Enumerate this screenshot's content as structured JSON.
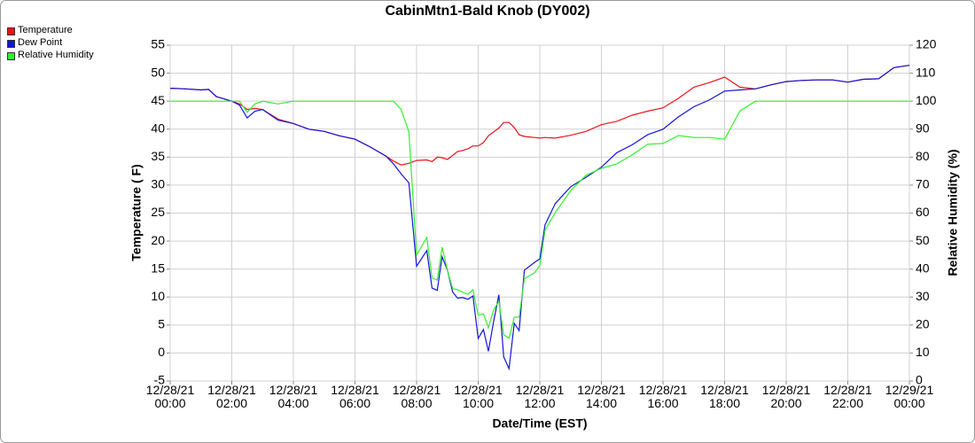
{
  "chart_data": {
    "type": "line",
    "title": "CabinMtn1-Bald Knob (DY002)",
    "x_label": "Date/Time (EST)",
    "y_label": "Temperature ( F)",
    "y2_label": "Relative Humidity (%)",
    "legend": "top-left",
    "grid": true,
    "xlim": [
      0,
      24
    ],
    "xticks": [
      {
        "value": 0,
        "label": "12/28/21\n00:00"
      },
      {
        "value": 2,
        "label": "12/28/21\n02:00"
      },
      {
        "value": 4,
        "label": "12/28/21\n04:00"
      },
      {
        "value": 6,
        "label": "12/28/21\n06:00"
      },
      {
        "value": 8,
        "label": "12/28/21\n08:00"
      },
      {
        "value": 10,
        "label": "12/28/21\n10:00"
      },
      {
        "value": 12,
        "label": "12/28/21\n12:00"
      },
      {
        "value": 14,
        "label": "12/28/21\n14:00"
      },
      {
        "value": 16,
        "label": "12/28/21\n16:00"
      },
      {
        "value": 18,
        "label": "12/28/21\n18:00"
      },
      {
        "value": 20,
        "label": "12/28/21\n20:00"
      },
      {
        "value": 22,
        "label": "12/28/21\n22:00"
      },
      {
        "value": 24,
        "label": "12/29/21\n00:00"
      }
    ],
    "ylim": [
      -5,
      55
    ],
    "yticks": [
      -5,
      0,
      5,
      10,
      15,
      20,
      25,
      30,
      35,
      40,
      45,
      50,
      55
    ],
    "y2lim": [
      0,
      120
    ],
    "y2ticks": [
      0,
      10,
      20,
      30,
      40,
      50,
      60,
      70,
      80,
      90,
      100,
      110,
      120
    ],
    "x": [
      0,
      0.5,
      1,
      1.25,
      1.5,
      2,
      2.25,
      2.5,
      2.75,
      3,
      3.5,
      4,
      4.5,
      5,
      5.5,
      6,
      6.5,
      7,
      7.25,
      7.5,
      7.75,
      8,
      8.33,
      8.5,
      8.67,
      8.83,
      9,
      9.17,
      9.33,
      9.5,
      9.67,
      9.83,
      10,
      10.17,
      10.33,
      10.5,
      10.67,
      10.83,
      11,
      11.17,
      11.33,
      11.5,
      11.83,
      12,
      12.17,
      12.5,
      13,
      13.5,
      14,
      14.5,
      15,
      15.5,
      16,
      16.5,
      17,
      17.5,
      18,
      18.5,
      19,
      19.5,
      20,
      20.5,
      21,
      21.5,
      22,
      22.5,
      23,
      23.5,
      24
    ],
    "series": [
      {
        "name": "Temperature",
        "color": "#e8141a",
        "values": [
          47.3,
          47.2,
          47.0,
          47.1,
          45.8,
          45.0,
          44.5,
          43.5,
          43.7,
          43.5,
          41.8,
          41.0,
          40.0,
          39.6,
          38.8,
          38.2,
          36.8,
          35.2,
          34.3,
          33.6,
          33.9,
          34.4,
          34.5,
          34.2,
          35.0,
          34.9,
          34.6,
          35.3,
          36.0,
          36.2,
          36.5,
          37.0,
          37.0,
          37.6,
          38.8,
          39.5,
          40.2,
          41.2,
          41.2,
          40.3,
          39.0,
          38.7,
          38.5,
          38.4,
          38.5,
          38.4,
          38.9,
          39.6,
          40.8,
          41.4,
          42.5,
          43.2,
          43.8,
          45.5,
          47.5,
          48.3,
          49.3,
          47.5,
          47.2,
          47.9,
          48.5,
          48.7,
          48.8,
          48.8,
          48.4,
          48.9,
          49.0,
          51.0,
          51.4
        ]
      },
      {
        "name": "Dew Point",
        "color": "#1414d8",
        "values": [
          47.3,
          47.2,
          47.0,
          47.1,
          45.8,
          45.0,
          44.3,
          42.0,
          43.2,
          43.5,
          41.6,
          41.0,
          40.0,
          39.6,
          38.8,
          38.2,
          36.8,
          35.2,
          33.8,
          32.0,
          30.4,
          15.5,
          18.3,
          11.6,
          11.2,
          17.2,
          14.8,
          10.9,
          9.8,
          9.9,
          9.6,
          10.2,
          2.6,
          4.2,
          0.3,
          5.6,
          10.4,
          -0.7,
          -2.8,
          5.3,
          4.0,
          14.8,
          16.2,
          16.8,
          22.9,
          26.7,
          29.7,
          31.4,
          33.2,
          35.8,
          37.2,
          39.0,
          40.0,
          42.2,
          44.0,
          45.2,
          46.8,
          47.0,
          47.2,
          47.9,
          48.5,
          48.7,
          48.8,
          48.8,
          48.4,
          48.9,
          49.0,
          51.0,
          51.4
        ]
      },
      {
        "name": "Relative Humidity",
        "color": "#33ee33",
        "axis": "y2",
        "values": [
          100,
          100,
          100,
          100,
          100,
          100,
          100,
          96,
          99,
          100,
          99,
          100,
          100,
          100,
          100,
          100,
          100,
          100,
          100,
          97,
          89,
          45,
          51.3,
          36.8,
          36.1,
          47.8,
          39.6,
          33,
          32.6,
          31.7,
          31,
          32.6,
          23.5,
          24,
          19,
          25.4,
          28.5,
          16.5,
          15.3,
          22.8,
          22.8,
          36.5,
          38.7,
          41.2,
          53.9,
          60.2,
          68,
          73.5,
          76,
          77.6,
          80.8,
          84.6,
          84.9,
          87.7,
          87,
          87,
          86.4,
          96.5,
          100,
          100,
          100,
          100,
          100,
          100,
          100,
          100,
          100,
          100,
          100
        ]
      }
    ]
  }
}
